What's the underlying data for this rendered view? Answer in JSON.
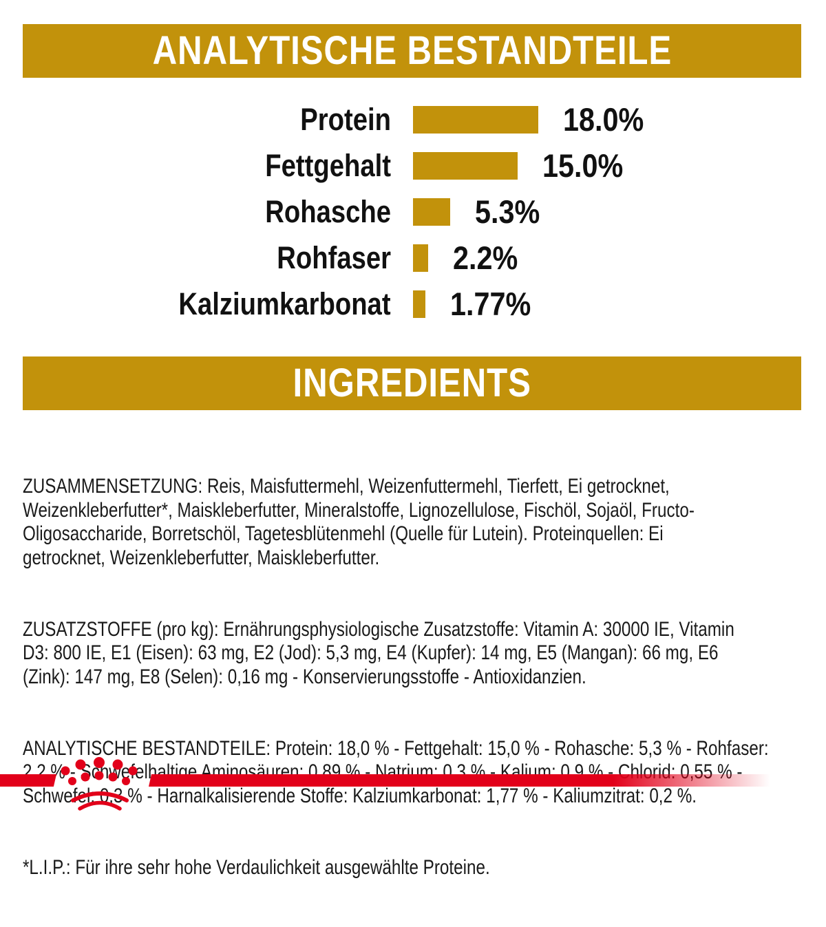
{
  "header_banner": {
    "title": "ANALYTISCHE BESTANDTEILE"
  },
  "ingredients_banner": {
    "title": "INGREDIENTS"
  },
  "chart_data": {
    "type": "bar",
    "orientation": "horizontal",
    "title": "ANALYTISCHE BESTANDTEILE",
    "categories": [
      "Protein",
      "Fettgehalt",
      "Rohasche",
      "Rohfaser",
      "Kalziumkarbonat"
    ],
    "values": [
      18.0,
      15.0,
      5.3,
      2.2,
      1.77
    ],
    "value_labels": [
      "18.0%",
      "15.0%",
      "5.3%",
      "2.2%",
      "1.77%"
    ],
    "unit": "%",
    "xlim": [
      0,
      20
    ],
    "bar_color": "#c2920b",
    "grid": false,
    "legend": false
  },
  "ingredients_text": {
    "composition": "ZUSAMMENSETZUNG: Reis, Maisfuttermehl, Weizenfuttermehl, Tierfett, Ei getrocknet,\nWeizenkleberfutter*, Maiskleberfutter, Mineralstoffe, Lignozellulose, Fischöl, Sojaöl, Fructo-\nOligosaccharide, Borretschöl, Tagetesblütenmehl (Quelle für Lutein). Proteinquellen: Ei\ngetrocknet, Weizenkleberfutter, Maiskleberfutter.",
    "additives": "ZUSATZSTOFFE (pro kg): Ernährungsphysiologische Zusatzstoffe: Vitamin A: 30000 IE, Vitamin\nD3: 800 IE, E1 (Eisen): 63 mg, E2 (Jod): 5,3 mg, E4 (Kupfer): 14 mg, E5 (Mangan): 66 mg, E6\n(Zink): 147 mg, E8 (Selen): 0,16 mg - Konservierungsstoffe - Antioxidanzien.",
    "analytical_constituents": "ANALYTISCHE BESTANDTEILE: Protein: 18,0 % - Fettgehalt: 15,0 % - Rohasche: 5,3 % - Rohfaser:\n2,2 % - Schwefelhaltige Aminosäuren: 0,89 % - Natrium: 0,3 % - Kalium: 0,9 % - Chlorid: 0,55 % -\nSchwefel: 0,3 % - Harnalkalisierende Stoffe: Kalziumkarbonat: 1,77 % - Kaliumzitrat: 0,2 %.",
    "lip_footnote": "*L.I.P.: Für ihre sehr hohe Verdaulichkeit ausgewählte Proteine."
  },
  "brand": {
    "logo_icon": "royal-canin-crown-icon",
    "accent_red": "#e2001a",
    "gold": "#c2920b"
  }
}
